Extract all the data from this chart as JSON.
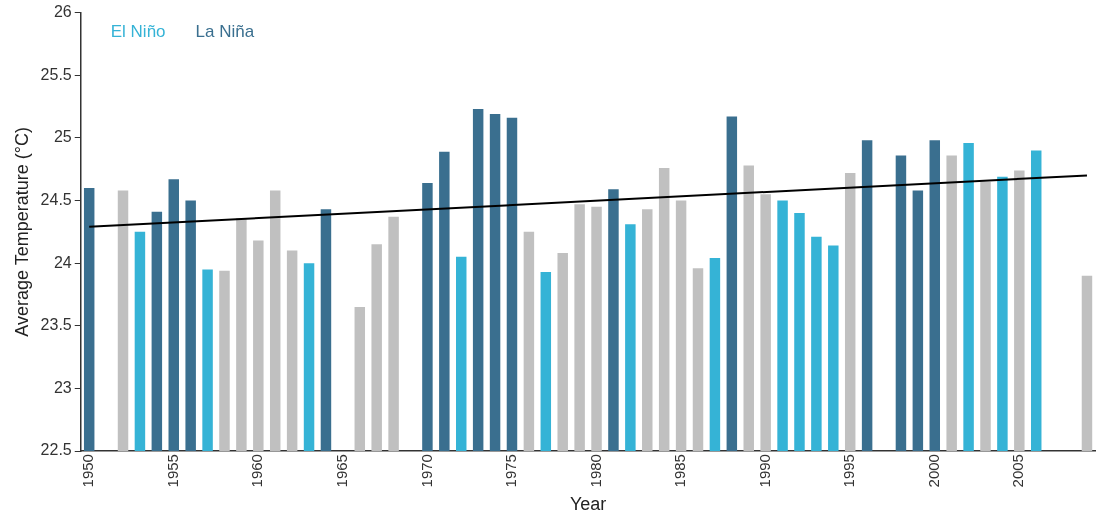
{
  "chart_data": {
    "type": "bar",
    "xlabel": "Year",
    "ylabel": "Average Temperature (°C)",
    "categories": [
      "1950",
      null,
      null,
      null,
      null,
      "1955",
      null,
      null,
      null,
      null,
      "1960",
      null,
      null,
      null,
      null,
      "1965",
      null,
      null,
      null,
      null,
      "1970",
      null,
      null,
      null,
      null,
      "1975",
      null,
      null,
      null,
      null,
      "1980",
      null,
      null,
      null,
      null,
      "1985",
      null,
      null,
      null,
      null,
      "1990",
      null,
      null,
      null,
      null,
      "1995",
      null,
      null,
      null,
      null,
      "2000",
      null,
      null,
      null,
      null,
      "2005",
      null,
      null,
      null,
      null
    ],
    "series": [
      {
        "name": "El Niño",
        "color": "#35b3d6",
        "values": [
          null,
          null,
          null,
          24.25,
          null,
          null,
          null,
          23.95,
          null,
          null,
          null,
          null,
          null,
          24.0,
          null,
          null,
          null,
          null,
          null,
          null,
          null,
          null,
          24.05,
          null,
          null,
          null,
          null,
          23.93,
          null,
          null,
          null,
          null,
          24.31,
          null,
          null,
          null,
          null,
          24.04,
          null,
          null,
          null,
          24.5,
          24.4,
          24.21,
          24.14,
          null,
          null,
          null,
          null,
          null,
          null,
          null,
          24.96,
          null,
          24.69,
          null,
          24.9,
          null,
          null,
          null
        ]
      },
      {
        "name": "La Niña",
        "color": "#3a6f8f",
        "values": [
          24.6,
          null,
          null,
          null,
          24.41,
          24.67,
          24.5,
          null,
          null,
          null,
          null,
          null,
          null,
          null,
          24.43,
          null,
          null,
          null,
          null,
          null,
          24.64,
          24.89,
          null,
          25.23,
          25.19,
          25.16,
          null,
          null,
          null,
          null,
          null,
          24.59,
          null,
          null,
          null,
          null,
          null,
          null,
          25.17,
          null,
          null,
          null,
          null,
          null,
          null,
          null,
          24.98,
          null,
          24.86,
          24.58,
          24.98,
          null,
          null,
          null,
          null,
          null,
          null,
          null,
          null,
          null
        ]
      },
      {
        "color": "#c0c0c0",
        "values": [
          null,
          null,
          24.58,
          null,
          null,
          null,
          null,
          null,
          23.94,
          24.36,
          24.18,
          24.58,
          24.1,
          null,
          null,
          null,
          23.65,
          24.15,
          24.37,
          null,
          null,
          null,
          null,
          null,
          null,
          null,
          24.25,
          null,
          24.08,
          24.47,
          24.45,
          null,
          null,
          24.43,
          24.76,
          24.5,
          23.96,
          null,
          null,
          24.78,
          24.55,
          null,
          null,
          null,
          null,
          24.72,
          null,
          null,
          null,
          null,
          null,
          24.86,
          null,
          24.65,
          null,
          24.74,
          null,
          null,
          null,
          23.9
        ]
      },
      {
        "type": "line",
        "color": "#000000",
        "values": [
          24.29,
          null,
          null,
          null,
          null,
          null,
          null,
          null,
          null,
          null,
          null,
          null,
          null,
          null,
          null,
          null,
          null,
          null,
          null,
          null,
          null,
          null,
          null,
          null,
          null,
          null,
          null,
          null,
          null,
          null,
          null,
          null,
          null,
          null,
          null,
          null,
          null,
          null,
          null,
          null,
          null,
          null,
          null,
          null,
          null,
          null,
          null,
          null,
          null,
          null,
          null,
          null,
          null,
          null,
          null,
          null,
          null,
          null,
          null,
          24.7
        ]
      }
    ],
    "ylim": [
      22.5,
      26
    ],
    "yticks": [
      22.5,
      23,
      23.5,
      24,
      24.5,
      25,
      25.5,
      26
    ],
    "grid": false,
    "legend": "top left",
    "marker": "none",
    "line_style": "solid"
  }
}
